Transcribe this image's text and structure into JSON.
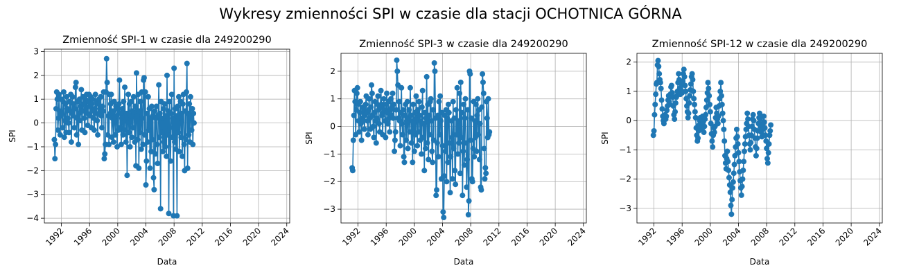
{
  "figure": {
    "suptitle": "Wykresy zmienności SPI w czasie dla stacji OCHOTNICA GÓRNA"
  },
  "style": {
    "series_color": "#1f77b4",
    "grid_color": "#b0b0b0"
  },
  "chart_data": [
    {
      "type": "line",
      "title": "Zmienność SPI-1 w czasie dla 249200290",
      "xlabel": "Data",
      "ylabel": "SPI",
      "x_ticks": [
        "1992",
        "1996",
        "2000",
        "2004",
        "2008",
        "2012",
        "2016",
        "2020",
        "2024"
      ],
      "y_ticks": [
        "3",
        "2",
        "1",
        "0",
        "−1",
        "−2",
        "−3",
        "−4"
      ],
      "xlim": [
        "1989-08",
        "2024-06"
      ],
      "ylim": [
        -4.2,
        3.1
      ],
      "grid": true,
      "marker": "circle",
      "series": [
        {
          "start": "1991-01",
          "frequency": "monthly",
          "values": [
            -0.7,
            -1.5,
            -0.9,
            0.6,
            1.3,
            1.0,
            -0.3,
            0.2,
            1.2,
            0.5,
            -0.5,
            0.3,
            1.0,
            0.4,
            -0.2,
            0.9,
            1.3,
            -0.6,
            0.1,
            0.8,
            -0.4,
            1.1,
            0.6,
            0.2,
            0.0,
            -0.4,
            0.9,
            0.5,
            1.2,
            -0.8,
            0.4,
            1.1,
            0.3,
            0.8,
            -0.2,
            0.6,
            1.5,
            1.7,
            -0.5,
            0.2,
            0.9,
            -0.9,
            0.4,
            1.0,
            0.1,
            0.7,
            1.4,
            -0.3,
            0.5,
            1.1,
            0.8,
            0.2,
            -0.4,
            1.0,
            0.6,
            1.2,
            0.4,
            -0.1,
            0.9,
            1.2,
            0.7,
            0.3,
            1.1,
            -0.2,
            0.8,
            1.0,
            0.5,
            0.2,
            -0.3,
            0.6,
            1.2,
            0.4,
            0.9,
            0.1,
            -0.5,
            0.8,
            1.0,
            0.4,
            0.6,
            1.1,
            0.3,
            -0.2,
            0.7,
            0.5,
            1.3,
            -1.5,
            -1.3,
            -0.9,
            1.3,
            2.7,
            1.7,
            -0.5,
            0.3,
            -0.9,
            1.2,
            0.4,
            0.8,
            1.2,
            -0.6,
            0.2,
            0.5,
            -0.8,
            0.9,
            0.1,
            -0.5,
            0.7,
            0.3,
            -1.0,
            0.6,
            -0.3,
            0.8,
            1.8,
            -0.2,
            0.4,
            -0.9,
            0.2,
            0.6,
            -0.5,
            0.9,
            -0.3,
            1.5,
            0.1,
            -0.8,
            0.4,
            -2.2,
            0.2,
            1.2,
            -0.4,
            0.8,
            -1.0,
            0.3,
            0.9,
            -0.6,
            0.5,
            -0.2,
            1.1,
            0.4,
            -0.8,
            0.7,
            -1.8,
            2.1,
            0.3,
            -0.7,
            1.2,
            -1.9,
            0.5,
            -0.4,
            0.9,
            -1.1,
            1.3,
            0.2,
            -0.9,
            1.8,
            1.9,
            -0.5,
            1.3,
            -2.6,
            -1.6,
            0.4,
            -0.8,
            1.1,
            -0.3,
            0.6,
            -1.9,
            0.2,
            -1.2,
            0.7,
            -0.7,
            0.3,
            -2.3,
            -2.8,
            0.5,
            -1.3,
            0.2,
            0.7,
            -0.9,
            -1.7,
            0.3,
            1.6,
            -0.6,
            0.4,
            -3.6,
            0.9,
            -0.4,
            0.2,
            -1.2,
            0.6,
            -0.8,
            0.8,
            -1.0,
            0.3,
            -1.4,
            2.0,
            -0.5,
            0.5,
            -3.8,
            0.9,
            -0.2,
            -1.6,
            0.4,
            1.2,
            -0.6,
            0.2,
            -3.9,
            2.3,
            -0.8,
            0.6,
            -1.1,
            0.3,
            -3.9,
            0.7,
            -0.4,
            1.1,
            -1.2,
            0.2,
            0.9,
            -0.6,
            0.4,
            -1.4,
            0.8,
            1.2,
            -0.9,
            -2.0,
            0.5,
            -0.7,
            1.3,
            2.5,
            -1.9,
            0.4,
            -0.5,
            0.8,
            -0.8,
            1.1,
            0.3,
            -0.3,
            0.6,
            -0.9,
            0.4,
            0.0
          ]
        }
      ]
    },
    {
      "type": "line",
      "title": "Zmienność SPI-3 w czasie dla 249200290",
      "xlabel": "Data",
      "ylabel": "SPI",
      "x_ticks": [
        "1992",
        "1996",
        "2000",
        "2004",
        "2008",
        "2012",
        "2016",
        "2020",
        "2024"
      ],
      "y_ticks": [
        "2",
        "1",
        "0",
        "−1",
        "−2",
        "−3"
      ],
      "xlim": [
        "1989-08",
        "2024-06"
      ],
      "ylim": [
        -3.5,
        2.65
      ],
      "grid": true,
      "marker": "circle",
      "series": [
        {
          "start": "1991-03",
          "frequency": "monthly",
          "values": [
            -1.5,
            -1.6,
            -0.5,
            0.4,
            1.3,
            0.9,
            -0.3,
            0.6,
            1.2,
            1.4,
            0.8,
            0.2,
            -0.2,
            0.5,
            0.9,
            0.1,
            -0.5,
            0.3,
            0.7,
            0.2,
            0.6,
            -0.1,
            0.4,
            0.8,
            1.1,
            0.5,
            0.2,
            -0.3,
            0.6,
            1.0,
            0.3,
            -0.1,
            0.7,
            1.5,
            1.2,
            0.4,
            0.0,
            -0.4,
            0.5,
            0.9,
            0.2,
            -0.6,
            0.3,
            0.8,
            1.1,
            0.6,
            0.1,
            -0.2,
            0.7,
            1.3,
            0.8,
            0.4,
            -0.3,
            0.5,
            1.0,
            0.6,
            0.2,
            -0.4,
            0.8,
            1.2,
            0.5,
            0.1,
            0.9,
            0.3,
            -0.2,
            0.6,
            1.0,
            0.4,
            0.7,
            1.2,
            0.3,
            0.8,
            -0.9,
            -0.5,
            -0.2,
            0.6,
            2.4,
            2.0,
            1.5,
            0.3,
            0.9,
            0.2,
            -0.7,
            0.5,
            1.4,
            0.1,
            -0.3,
            0.6,
            -1.1,
            -1.3,
            0.4,
            0.8,
            -0.5,
            0.2,
            0.9,
            -0.8,
            0.3,
            0.6,
            -0.2,
            1.4,
            0.4,
            -0.6,
            0.2,
            -1.3,
            0.8,
            0.1,
            -0.9,
            0.5,
            -0.3,
            1.1,
            0.3,
            -0.7,
            0.6,
            -0.2,
            0.9,
            0.4,
            -0.5,
            0.2,
            -1.0,
            0.7,
            1.3,
            -0.4,
            0.1,
            -1.6,
            0.5,
            -0.8,
            0.3,
            1.8,
            -0.6,
            0.8,
            -1.2,
            0.4,
            -0.3,
            0.9,
            1.0,
            0.2,
            -0.9,
            -1.3,
            0.6,
            -0.5,
            2.3,
            2.0,
            0.3,
            -2.5,
            -2.3,
            -0.6,
            0.4,
            -1.1,
            0.9,
            -0.3,
            1.1,
            0.2,
            -1.9,
            0.5,
            -0.7,
            -3.1,
            -3.3,
            -1.8,
            0.4,
            -0.9,
            0.6,
            -2.0,
            0.3,
            -1.3,
            0.8,
            0.5,
            -0.6,
            -2.4,
            -1.1,
            0.2,
            -0.4,
            -1.9,
            0.9,
            -0.8,
            0.3,
            -1.6,
            -2.1,
            0.6,
            -0.3,
            1.4,
            -1.0,
            0.2,
            -0.6,
            1.2,
            -1.7,
            1.6,
            -0.4,
            0.5,
            -2.5,
            -0.9,
            0.8,
            -1.4,
            0.3,
            1.0,
            -0.6,
            -2.2,
            -1.2,
            0.6,
            -3.2,
            -2.7,
            2.0,
            1.9,
            -0.5,
            0.3,
            -1.9,
            -2.0,
            -0.8,
            0.9,
            -1.1,
            0.2,
            -0.4,
            0.8,
            -0.9,
            0.4,
            1.0,
            -0.3,
            0.6,
            -1.2,
            0.1,
            -2.2,
            -2.3,
            0.7,
            1.9,
            1.6,
            1.2,
            -0.8,
            -1.9,
            -1.5,
            -1.7,
            0.9,
            0.3,
            -0.4,
            1.0,
            -0.3,
            -0.2
          ]
        }
      ]
    },
    {
      "type": "line",
      "title": "Zmienność SPI-12 w czasie dla 249200290",
      "xlabel": "Data",
      "ylabel": "SPI",
      "x_ticks": [
        "1992",
        "1996",
        "2000",
        "2004",
        "2008",
        "2012",
        "2016",
        "2020",
        "2024"
      ],
      "y_ticks": [
        "2",
        "1",
        "0",
        "−1",
        "−2",
        "−3"
      ],
      "xlim": [
        "1989-08",
        "2024-06"
      ],
      "ylim": [
        -3.5,
        2.3
      ],
      "grid": true,
      "marker": "circle",
      "series": [
        {
          "start": "1991-12",
          "frequency": "monthly",
          "values": [
            -0.5,
            -0.35,
            0.2,
            0.55,
            0.9,
            1.25,
            1.3,
            1.9,
            2.05,
            1.85,
            1.6,
            1.4,
            1.3,
            1.1,
            0.7,
            0.4,
            0.15,
            0.0,
            -0.1,
            0.1,
            0.2,
            0.05,
            0.15,
            0.35,
            0.5,
            0.7,
            0.85,
            0.65,
            0.55,
            0.9,
            1.15,
            1.2,
            0.95,
            0.8,
            0.5,
            0.2,
            0.05,
            0.3,
            0.6,
            0.8,
            0.85,
            1.0,
            1.3,
            1.6,
            1.4,
            1.1,
            0.9,
            1.05,
            1.2,
            0.95,
            1.35,
            1.6,
            1.75,
            1.5,
            1.2,
            1.0,
            0.75,
            0.5,
            0.3,
            0.1,
            0.25,
            0.6,
            0.85,
            1.05,
            1.25,
            1.5,
            1.6,
            1.4,
            1.0,
            0.75,
            0.55,
            0.3,
            0.1,
            -0.25,
            -0.5,
            -0.7,
            -0.6,
            -0.35,
            -0.15,
            0.0,
            0.1,
            -0.05,
            -0.3,
            -0.15,
            0.15,
            -0.05,
            -0.4,
            -0.2,
            0.05,
            0.2,
            0.45,
            0.7,
            0.95,
            1.3,
            1.1,
            0.85,
            0.55,
            0.3,
            -0.1,
            -0.45,
            -0.7,
            -0.9,
            -0.5,
            -0.25,
            -0.4,
            -0.2,
            0.1,
            0.45,
            0.25,
            0.05,
            -0.1,
            0.15,
            0.5,
            0.75,
            1.0,
            1.3,
            0.85,
            0.55,
            0.25,
            0.0,
            -0.3,
            -0.7,
            -1.2,
            -1.45,
            -1.65,
            -1.3,
            -1.05,
            -1.4,
            -1.7,
            -1.95,
            -2.2,
            -2.45,
            -2.9,
            -3.2,
            -2.7,
            -2.3,
            -2.1,
            -1.8,
            -1.5,
            -1.2,
            -0.9,
            -0.6,
            -0.3,
            -0.55,
            -0.8,
            -1.1,
            -1.4,
            -1.75,
            -2.05,
            -2.3,
            -2.55,
            -2.25,
            -2.0,
            -1.7,
            -1.4,
            -1.05,
            -0.8,
            -0.55,
            -0.3,
            -0.1,
            0.25,
            0.05,
            -0.2,
            -0.5,
            -0.8,
            -1.0,
            -0.75,
            -0.5,
            -0.2,
            0.05,
            0.2,
            0.0,
            -0.3,
            -0.6,
            -0.9,
            -1.2,
            -0.95,
            -0.6,
            -0.35,
            -0.1,
            0.1,
            0.25,
            0.05,
            -0.2,
            -0.4,
            -0.55,
            -0.3,
            -0.1,
            0.15,
            -0.05,
            -0.25,
            -0.5,
            -0.7,
            -0.95,
            -1.3,
            -1.45,
            -1.1,
            -0.8,
            -0.5,
            -0.35,
            -0.15
          ]
        }
      ]
    }
  ]
}
